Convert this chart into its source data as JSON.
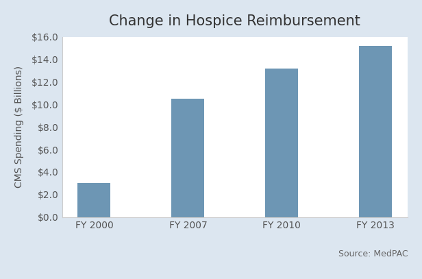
{
  "title": "Change in Hospice Reimbursement",
  "categories": [
    "FY 2000",
    "FY 2007",
    "FY 2010",
    "FY 2013"
  ],
  "values": [
    3.0,
    10.5,
    13.2,
    15.2
  ],
  "bar_color": "#6d96b4",
  "ylabel": "CMS Spending ($ Billions)",
  "ylim": [
    0,
    16.0
  ],
  "yticks": [
    0.0,
    2.0,
    4.0,
    6.0,
    8.0,
    10.0,
    12.0,
    14.0,
    16.0
  ],
  "figure_background_color": "#dce6f0",
  "plot_background_color": "#ffffff",
  "source_text": "Source: MedPAC",
  "title_fontsize": 15,
  "label_fontsize": 10,
  "tick_fontsize": 10,
  "source_fontsize": 9
}
